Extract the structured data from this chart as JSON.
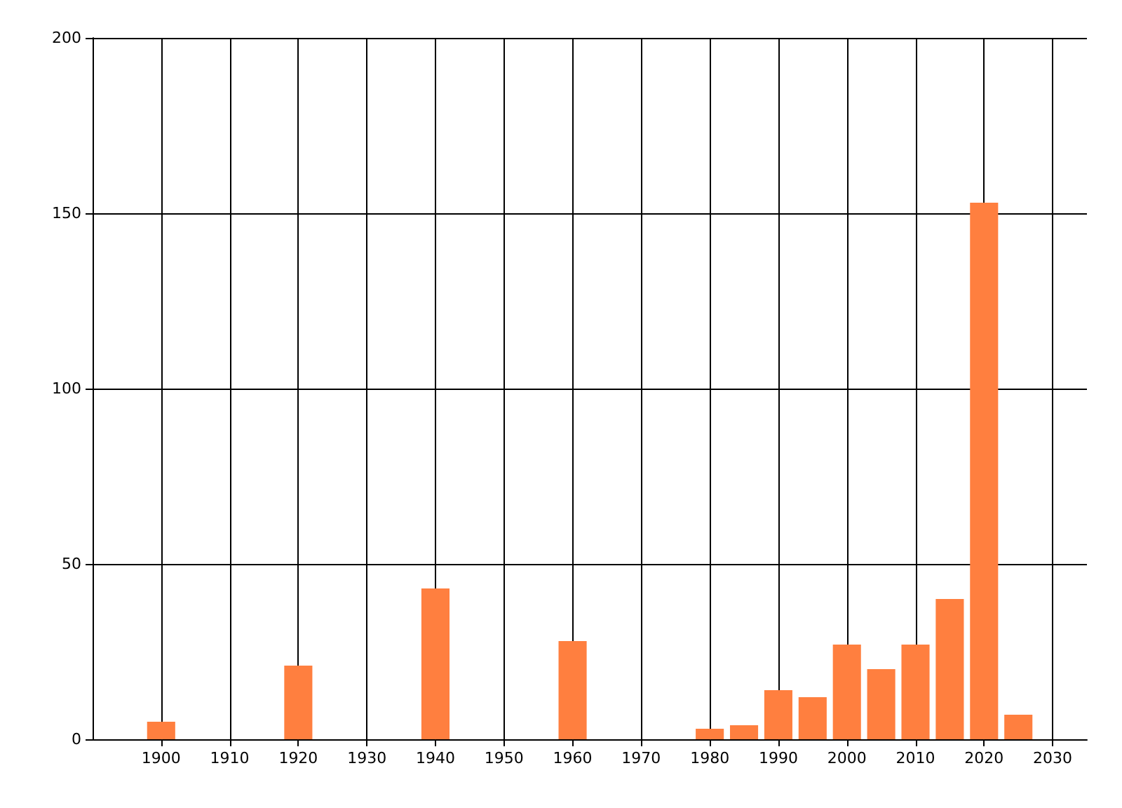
{
  "chart_data": {
    "type": "bar",
    "x": [
      1900,
      1920,
      1940,
      1960,
      1980,
      1985,
      1990,
      1995,
      2000,
      2005,
      2010,
      2015,
      2020,
      2025
    ],
    "values": [
      5,
      21,
      43,
      28,
      3,
      4,
      14,
      12,
      27,
      20,
      27,
      40,
      153,
      7
    ],
    "color": "#ff7f3f",
    "xlim": [
      1890,
      2035
    ],
    "xticks": [
      1900,
      1910,
      1920,
      1930,
      1940,
      1950,
      1960,
      1970,
      1980,
      1990,
      2000,
      2010,
      2020,
      2030
    ],
    "ylim": [
      0,
      200
    ],
    "yticks": [
      0,
      50,
      100,
      150,
      200
    ],
    "grid": true
  }
}
